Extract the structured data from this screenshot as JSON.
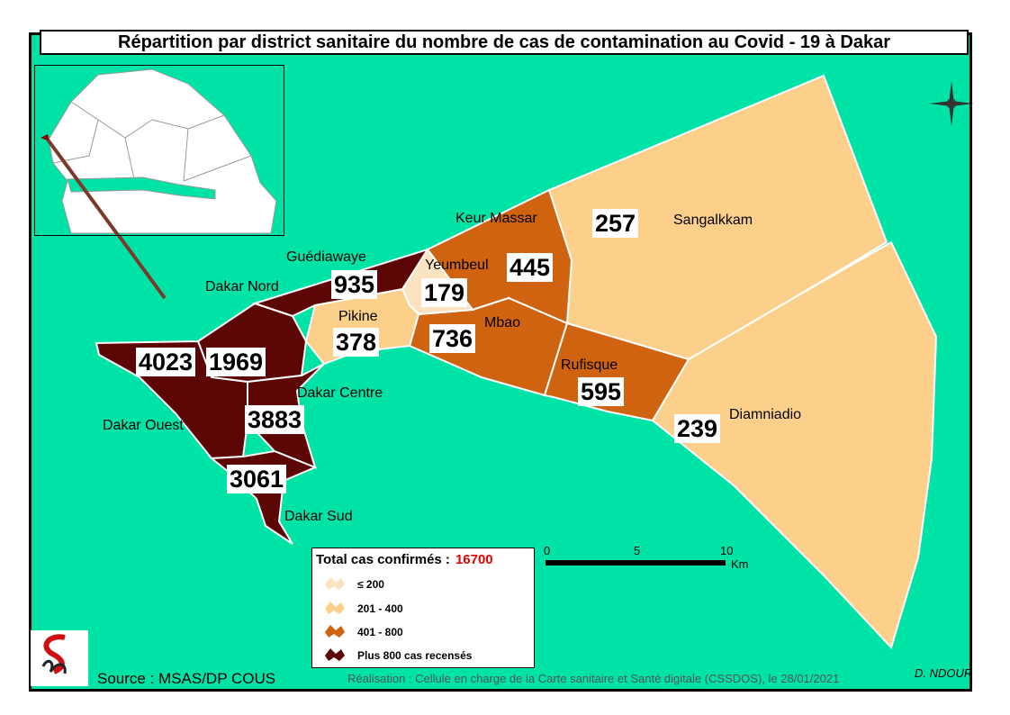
{
  "title": "Répartition par district sanitaire du nombre de cas de contamination au Covid - 19 à Dakar",
  "districts": [
    {
      "name": "Dakar Ouest",
      "cases": "4023"
    },
    {
      "name": "Dakar Nord",
      "cases": "1969"
    },
    {
      "name": "Dakar Centre",
      "cases": "3883"
    },
    {
      "name": "Dakar Sud",
      "cases": "3061"
    },
    {
      "name": "Guédiawaye",
      "cases": "935"
    },
    {
      "name": "Pikine",
      "cases": "378"
    },
    {
      "name": "Yeumbeul",
      "cases": "179"
    },
    {
      "name": "Keur Massar",
      "cases": "445"
    },
    {
      "name": "Mbao",
      "cases": "736"
    },
    {
      "name": "Rufisque",
      "cases": "595"
    },
    {
      "name": "Sangalkkam",
      "cases": "257"
    },
    {
      "name": "Diamniadio",
      "cases": "239"
    }
  ],
  "legend": {
    "title": "Total cas confirmés :",
    "total": "16700",
    "classes": [
      {
        "label": "≤ 200",
        "color": "#fbe3c0"
      },
      {
        "label": "201 - 400",
        "color": "#fcd08a"
      },
      {
        "label": "401 - 800",
        "color": "#cf6310"
      },
      {
        "label": "Plus 800 cas recensés",
        "color": "#5c0606"
      }
    ]
  },
  "scale": {
    "ticks": [
      "0",
      "5",
      "10"
    ],
    "unit": "Km"
  },
  "colors": {
    "sea": "#00e3a6",
    "dark": "#5c0606",
    "mid": "#cf6310",
    "light": "#fcd08a",
    "pale": "#fbe3c0",
    "total": "#e00000"
  },
  "source": "Source : MSAS/DP COUS",
  "credit": "Réalisation : Cellule en charge de la Carte sanitaire et Santé digitale (CSSDOS), le 28/01/2021",
  "author": "D. NDOUR"
}
